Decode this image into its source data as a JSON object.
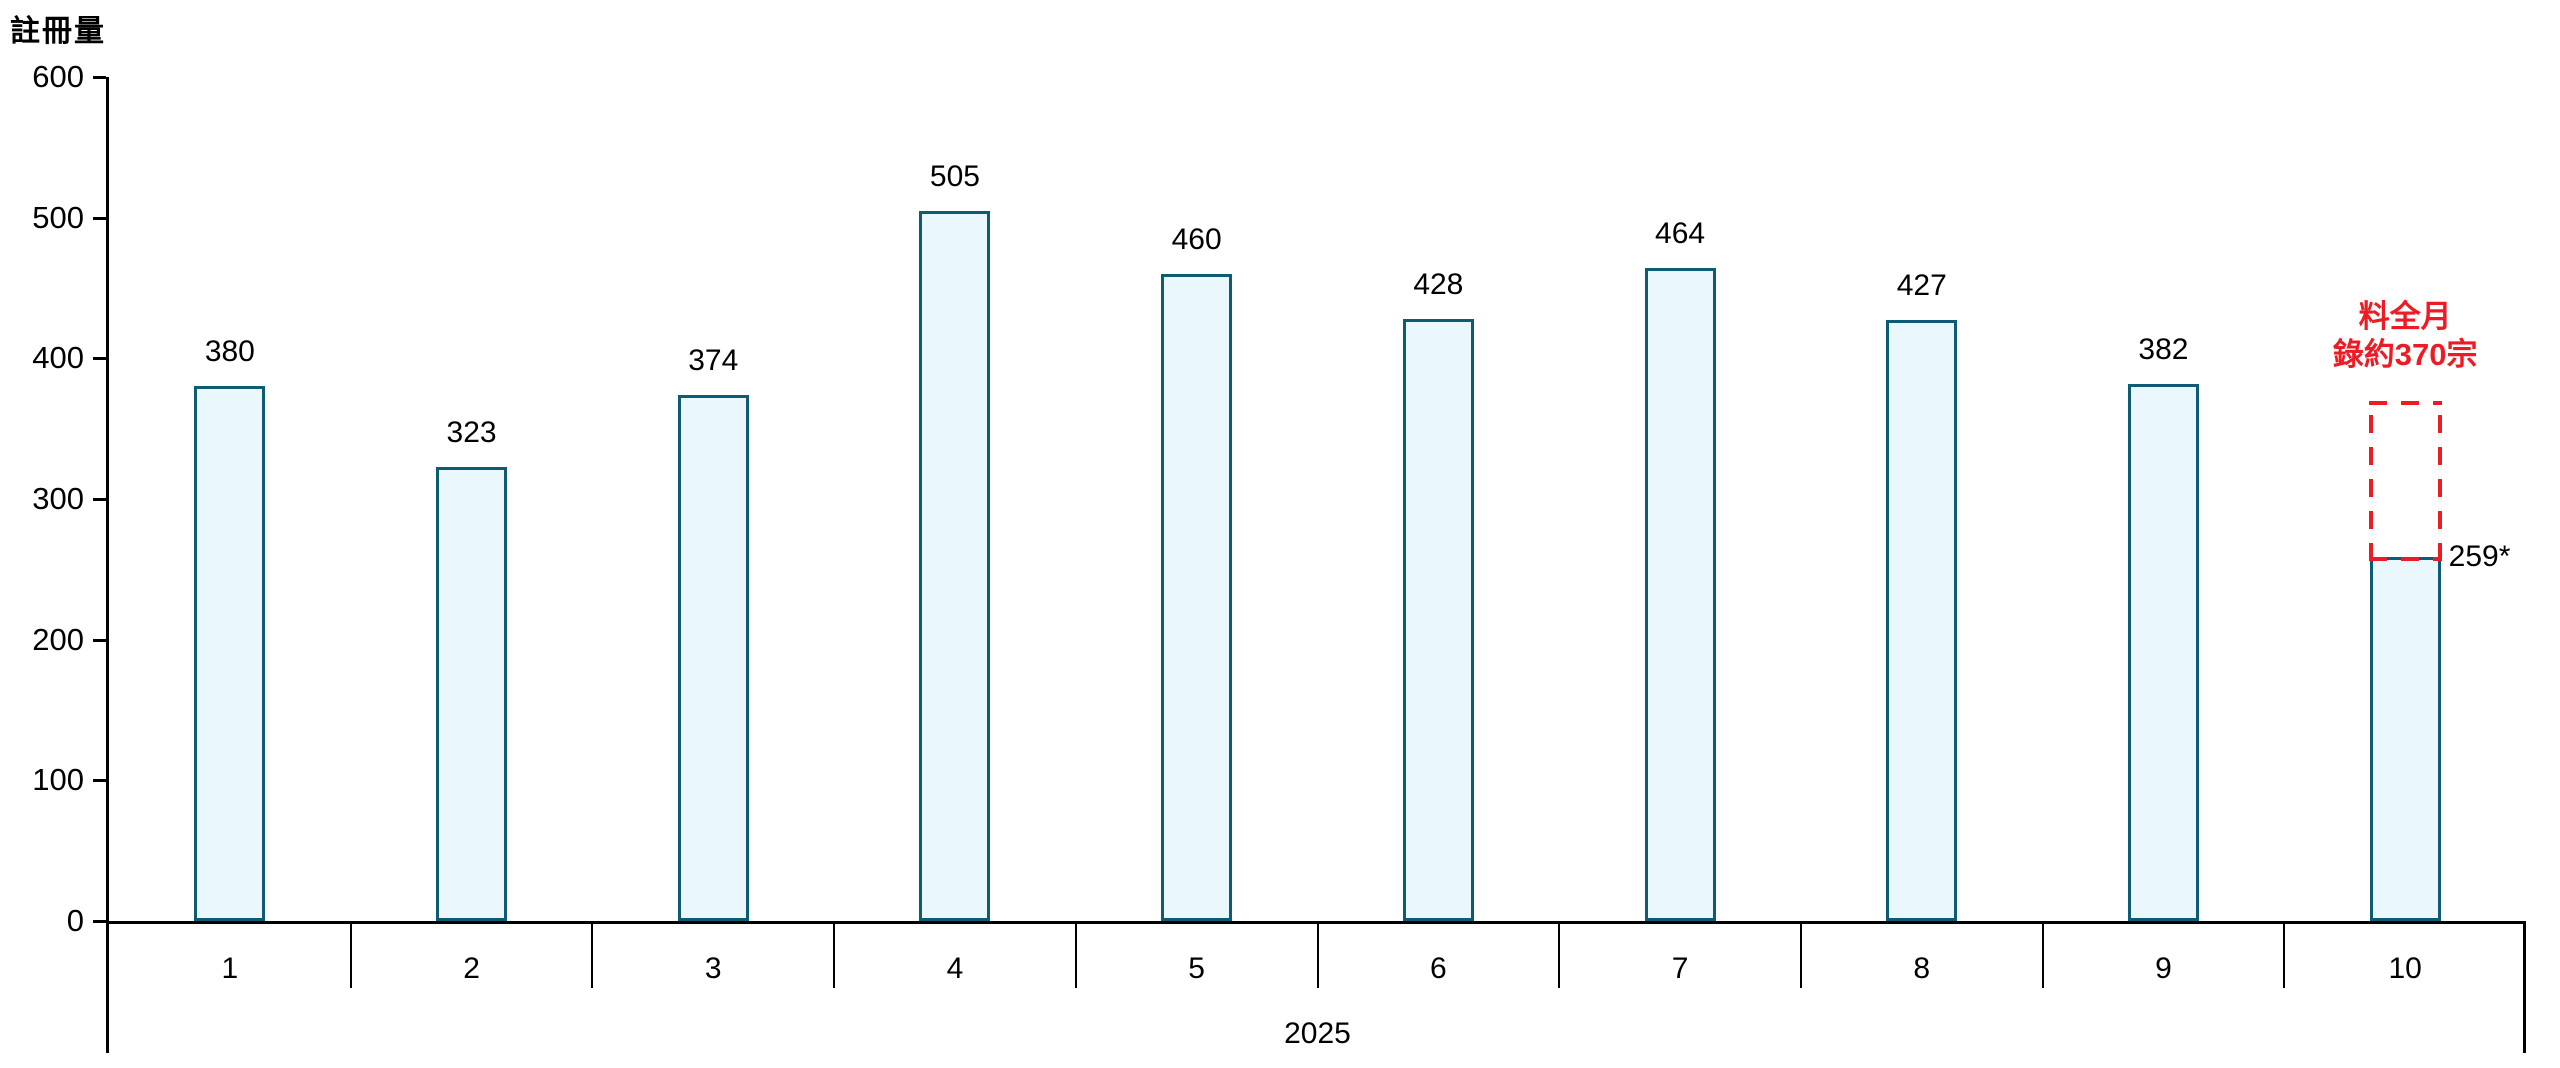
{
  "chart_data": {
    "type": "bar",
    "title": "註冊量",
    "year_label": "2025",
    "categories": [
      "1",
      "2",
      "3",
      "4",
      "5",
      "6",
      "7",
      "8",
      "9",
      "10"
    ],
    "values": [
      380,
      323,
      374,
      505,
      460,
      428,
      464,
      427,
      382,
      259
    ],
    "bar_labels": [
      "380",
      "323",
      "374",
      "505",
      "460",
      "428",
      "464",
      "427",
      "382",
      "259*"
    ],
    "ylim": [
      0,
      600
    ],
    "ytick_step": 100,
    "yticks": [
      "600",
      "500",
      "400",
      "300",
      "200",
      "100",
      "0"
    ],
    "grid": false,
    "legend": "none",
    "annotation": {
      "line1": "料全月",
      "line2": "錄約370宗",
      "forecast_value": 370,
      "applies_to_category": "10"
    },
    "colors": {
      "bar_fill": "#EAF8FD",
      "bar_border": "#0D5C73",
      "axis": "#000000",
      "text": "#000000",
      "annotation_red": "#ED1C24"
    }
  }
}
